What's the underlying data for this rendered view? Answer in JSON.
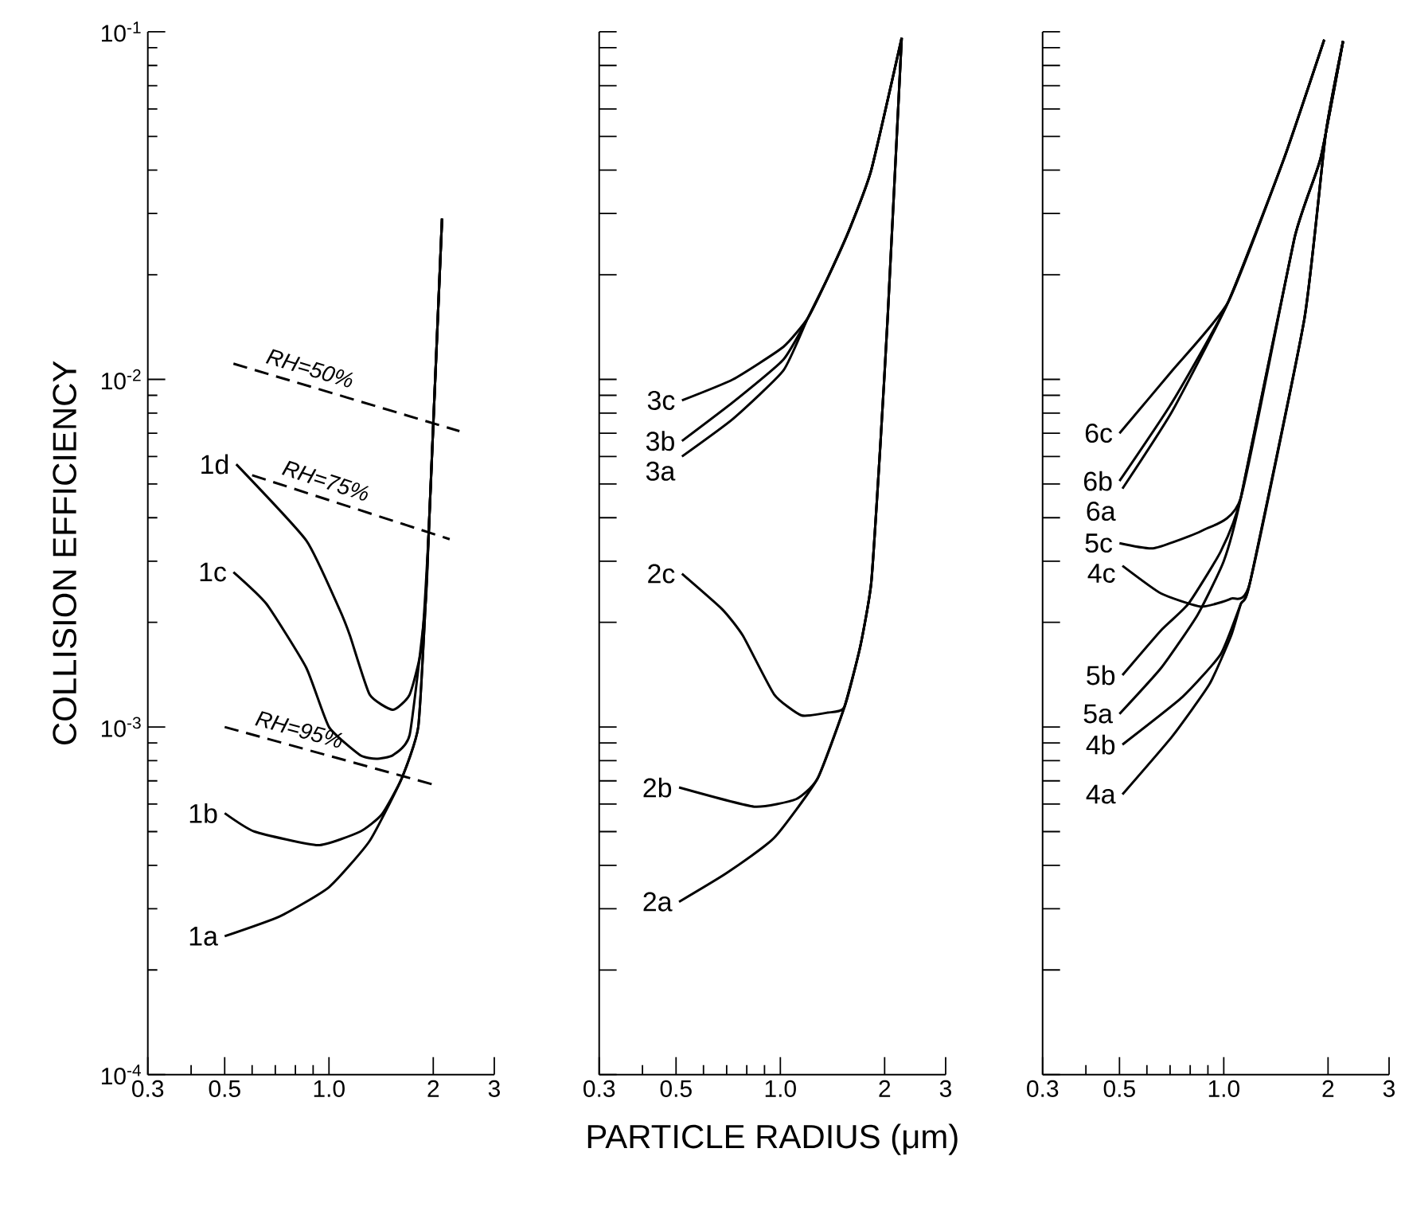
{
  "chart_data": [
    {
      "type": "line",
      "ylabel": "COLLISION EFFICIENCY",
      "log": "xy",
      "xlim": [
        0.3,
        3
      ],
      "ylim": [
        0.0001,
        0.1
      ],
      "xticks": [
        0.3,
        {
          "value": 0.4,
          "label": null
        },
        0.5,
        {
          "value": 0.6,
          "label": null
        },
        {
          "value": 0.7,
          "label": null
        },
        {
          "value": 0.8,
          "label": null
        },
        {
          "value": 0.9,
          "label": null
        },
        {
          "value": 1,
          "label": "1.0"
        },
        2,
        3
      ],
      "yticks": [
        {
          "value": 0.0001,
          "label": "10$^{-4}$"
        },
        {
          "value": 0.0002,
          "label": null
        },
        {
          "value": 0.0003,
          "label": null
        },
        {
          "value": 0.0004,
          "label": null
        },
        {
          "value": 0.0005,
          "label": null
        },
        {
          "value": 0.0006,
          "label": null
        },
        {
          "value": 0.0007,
          "label": null
        },
        {
          "value": 0.0008,
          "label": null
        },
        {
          "value": 0.0009,
          "label": null
        },
        {
          "value": 0.001,
          "label": "10$^{-3}$"
        },
        {
          "value": 0.002,
          "label": null
        },
        {
          "value": 0.003,
          "label": null
        },
        {
          "value": 0.004,
          "label": null
        },
        {
          "value": 0.005,
          "label": null
        },
        {
          "value": 0.006,
          "label": null
        },
        {
          "value": 0.007,
          "label": null
        },
        {
          "value": 0.008,
          "label": null
        },
        {
          "value": 0.009,
          "label": null
        },
        {
          "value": 0.01,
          "label": "10$^{-2}$"
        },
        {
          "value": 0.02,
          "label": null
        },
        {
          "value": 0.03,
          "label": null
        },
        {
          "value": 0.04,
          "label": null
        },
        {
          "value": 0.05,
          "label": null
        },
        {
          "value": 0.06,
          "label": null
        },
        {
          "value": 0.07,
          "label": null
        },
        {
          "value": 0.08,
          "label": null
        },
        {
          "value": 0.09,
          "label": null
        },
        {
          "value": 0.1,
          "label": "10$^{-1}$"
        }
      ],
      "series": [
        {
          "name": "1a",
          "color": "#000000",
          "line_style": "solid",
          "x": [
            0.5,
            0.72,
            1.0,
            1.31,
            1.62,
            1.81,
            1.9,
            1.94,
            2.0,
            2.12
          ],
          "values": [
            0.00025,
            0.000285,
            0.000346,
            0.00047,
            0.00071,
            0.001,
            0.00226,
            0.0036,
            0.0074,
            0.029
          ]
        },
        {
          "name": "1b",
          "color": "#000000",
          "line_style": "solid",
          "x": [
            0.5,
            0.61,
            0.93,
            1.23,
            1.42,
            1.62,
            1.81,
            1.9,
            1.94,
            2.0,
            2.12
          ],
          "values": [
            0.000565,
            0.0005,
            0.000457,
            0.0005,
            0.00056,
            0.00071,
            0.001,
            0.00226,
            0.0036,
            0.0074,
            0.029
          ]
        },
        {
          "name": "1c",
          "color": "#000000",
          "line_style": "solid",
          "x": [
            0.53,
            0.66,
            0.86,
            1.0,
            1.23,
            1.37,
            1.53,
            1.71,
            1.9,
            1.94,
            2.0,
            2.12
          ],
          "values": [
            0.00279,
            0.00226,
            0.00148,
            0.001,
            0.00083,
            0.00081,
            0.00083,
            0.00095,
            0.00226,
            0.0036,
            0.0074,
            0.029
          ]
        },
        {
          "name": "1d",
          "color": "#000000",
          "line_style": "solid",
          "x": [
            0.54,
            0.86,
            1.07,
            1.15,
            1.31,
            1.53,
            1.71,
            1.85,
            1.94,
            2.0,
            2.12
          ],
          "values": [
            0.0057,
            0.00344,
            0.00219,
            0.00183,
            0.00124,
            0.00112,
            0.00124,
            0.0017,
            0.0036,
            0.0074,
            0.029
          ]
        },
        {
          "name": "RH=50%",
          "color": "#000000",
          "line_style": "dashed",
          "x": [
            0.53,
            2.38
          ],
          "values": [
            0.0111,
            0.0071
          ]
        },
        {
          "name": "RH=75%",
          "color": "#000000",
          "line_style": "dashed",
          "x": [
            0.6,
            2.23
          ],
          "values": [
            0.0053,
            0.00347
          ]
        },
        {
          "name": "RH=95%",
          "color": "#000000",
          "line_style": "dashed",
          "x": [
            0.5,
            1.98
          ],
          "values": [
            0.001,
            0.000685
          ]
        }
      ]
    },
    {
      "type": "line",
      "xlabel": "PARTICLE RADIUS (μm)",
      "log": "xy",
      "tick_labels": "x",
      "xlim": [
        0.3,
        3
      ],
      "ylim": [
        0.0001,
        0.1
      ],
      "xticks": [
        0.3,
        {
          "value": 0.4,
          "label": null
        },
        0.5,
        {
          "value": 0.6,
          "label": null
        },
        {
          "value": 0.7,
          "label": null
        },
        {
          "value": 0.8,
          "label": null
        },
        {
          "value": 0.9,
          "label": null
        },
        {
          "value": 1,
          "label": "1.0"
        },
        2,
        3
      ],
      "yticks": [
        0.0001,
        0.0002,
        0.0003,
        0.0004,
        0.0005,
        0.0006,
        0.0007,
        0.0008,
        0.0009,
        0.001,
        0.002,
        0.003,
        0.004,
        0.005,
        0.006,
        0.007,
        0.008,
        0.009,
        0.01,
        0.02,
        0.03,
        0.04,
        0.05,
        0.06,
        0.07,
        0.08,
        0.09,
        0.1
      ],
      "series": [
        {
          "name": "2a",
          "color": "#000000",
          "line_style": "solid",
          "x": [
            0.51,
            0.7,
            0.96,
            1.28,
            1.53,
            1.7,
            1.83,
            1.94,
            2.04,
            2.24
          ],
          "values": [
            0.000314,
            0.00038,
            0.00048,
            0.00071,
            0.00114,
            0.0017,
            0.0026,
            0.00625,
            0.015,
            0.096
          ]
        },
        {
          "name": "2b",
          "color": "#000000",
          "line_style": "solid",
          "x": [
            0.51,
            0.84,
            1.11,
            1.28,
            1.53,
            1.7,
            1.83,
            1.94,
            2.04,
            2.24
          ],
          "values": [
            0.00067,
            0.00059,
            0.00062,
            0.00071,
            0.00114,
            0.0017,
            0.0026,
            0.00625,
            0.015,
            0.096
          ]
        },
        {
          "name": "2c",
          "color": "#000000",
          "line_style": "solid",
          "x": [
            0.52,
            0.68,
            0.78,
            0.96,
            1.15,
            1.37,
            1.53,
            1.7,
            1.83,
            1.94,
            2.04,
            2.24
          ],
          "values": [
            0.00276,
            0.00218,
            0.00183,
            0.00124,
            0.00108,
            0.0011,
            0.00114,
            0.0017,
            0.0026,
            0.00625,
            0.015,
            0.096
          ]
        },
        {
          "name": "3a",
          "color": "#000000",
          "line_style": "solid",
          "x": [
            0.52,
            0.73,
            1.02,
            1.2,
            1.38,
            1.59,
            1.83,
            2.24
          ],
          "values": [
            0.006,
            0.0077,
            0.0106,
            0.015,
            0.0199,
            0.0273,
            0.04,
            0.096
          ]
        },
        {
          "name": "3b",
          "color": "#000000",
          "line_style": "solid",
          "x": [
            0.52,
            0.73,
            1.02,
            1.2,
            1.38,
            1.59,
            1.83,
            2.24
          ],
          "values": [
            0.00665,
            0.0086,
            0.0114,
            0.015,
            0.0199,
            0.0273,
            0.04,
            0.096
          ]
        },
        {
          "name": "3c",
          "color": "#000000",
          "line_style": "solid",
          "x": [
            0.52,
            0.73,
            1.02,
            1.2,
            1.38,
            1.59,
            1.83,
            2.24
          ],
          "values": [
            0.0087,
            0.01,
            0.0124,
            0.015,
            0.0199,
            0.0273,
            0.04,
            0.096
          ]
        }
      ]
    },
    {
      "type": "line",
      "log": "xy",
      "tick_labels": "x",
      "xlim": [
        0.3,
        3
      ],
      "ylim": [
        0.0001,
        0.1
      ],
      "xticks": [
        0.3,
        {
          "value": 0.4,
          "label": null
        },
        0.5,
        {
          "value": 0.6,
          "label": null
        },
        {
          "value": 0.7,
          "label": null
        },
        {
          "value": 0.8,
          "label": null
        },
        {
          "value": 0.9,
          "label": null
        },
        {
          "value": 1,
          "label": "1.0"
        },
        2,
        3
      ],
      "yticks": [
        0.0001,
        0.0002,
        0.0003,
        0.0004,
        0.0005,
        0.0006,
        0.0007,
        0.0008,
        0.0009,
        0.001,
        0.002,
        0.003,
        0.004,
        0.005,
        0.006,
        0.007,
        0.008,
        0.009,
        0.01,
        0.02,
        0.03,
        0.04,
        0.05,
        0.06,
        0.07,
        0.08,
        0.09,
        0.1
      ],
      "series": [
        {
          "name": "6c",
          "color": "#000000",
          "line_style": "solid",
          "x": [
            0.5,
            0.71,
            1.03,
            1.49,
            1.95
          ],
          "values": [
            0.007,
            0.0106,
            0.0167,
            0.043,
            0.095
          ]
        },
        {
          "name": "6b",
          "color": "#000000",
          "line_style": "solid",
          "x": [
            0.5,
            0.71,
            1.03,
            1.49,
            1.95
          ],
          "values": [
            0.0051,
            0.0086,
            0.0167,
            0.043,
            0.095
          ]
        },
        {
          "name": "6a",
          "color": "#000000",
          "line_style": "solid",
          "x": [
            0.51,
            0.71,
            1.03,
            1.49,
            1.95
          ],
          "values": [
            0.00485,
            0.0081,
            0.0167,
            0.043,
            0.095
          ]
        },
        {
          "name": "5c",
          "color": "#000000",
          "line_style": "solid",
          "x": [
            0.5,
            0.63,
            0.88,
            1.12,
            1.6,
            1.9,
            2.21
          ],
          "values": [
            0.00338,
            0.00327,
            0.0037,
            0.00456,
            0.0255,
            0.043,
            0.094
          ]
        },
        {
          "name": "4c",
          "color": "#000000",
          "line_style": "solid",
          "x": [
            0.51,
            0.66,
            0.86,
            1.05,
            1.19,
            1.71,
            1.97,
            2.21
          ],
          "values": [
            0.00291,
            0.00242,
            0.00222,
            0.00234,
            0.0026,
            0.015,
            0.051,
            0.094
          ]
        },
        {
          "name": "5b",
          "color": "#000000",
          "line_style": "solid",
          "x": [
            0.51,
            0.66,
            0.79,
            0.98,
            1.12,
            1.6,
            1.9,
            2.21
          ],
          "values": [
            0.00141,
            0.0019,
            0.00226,
            0.0032,
            0.00456,
            0.0255,
            0.043,
            0.094
          ]
        },
        {
          "name": "5a",
          "color": "#000000",
          "line_style": "solid",
          "x": [
            0.5,
            0.66,
            0.84,
            1.0,
            1.12,
            1.6,
            1.9,
            2.21
          ],
          "values": [
            0.00109,
            0.00148,
            0.0021,
            0.003,
            0.00456,
            0.0255,
            0.043,
            0.094
          ]
        },
        {
          "name": "4b",
          "color": "#000000",
          "line_style": "solid",
          "x": [
            0.51,
            0.76,
            0.98,
            1.12,
            1.19,
            1.71,
            1.97,
            2.21
          ],
          "values": [
            0.00089,
            0.00122,
            0.00162,
            0.00226,
            0.0026,
            0.015,
            0.051,
            0.094
          ]
        },
        {
          "name": "4a",
          "color": "#000000",
          "line_style": "solid",
          "x": [
            0.51,
            0.71,
            0.91,
            1.05,
            1.12,
            1.19,
            1.71,
            1.97,
            2.21
          ],
          "values": [
            0.00064,
            0.00094,
            0.00133,
            0.00183,
            0.00226,
            0.0026,
            0.015,
            0.051,
            0.094
          ]
        }
      ]
    }
  ]
}
